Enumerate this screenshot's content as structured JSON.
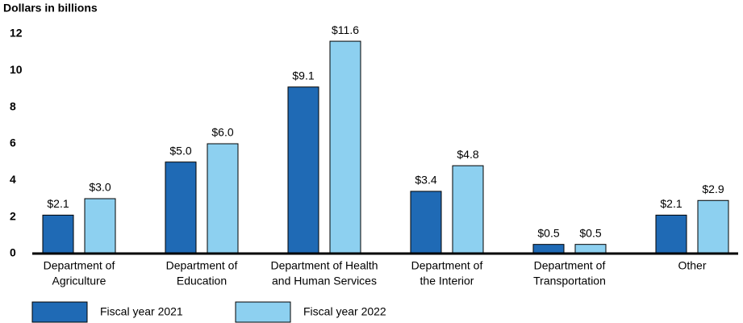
{
  "chart_data": {
    "type": "bar",
    "ylabel": "Dollars in billions",
    "categories": [
      [
        "Department of",
        "Agriculture"
      ],
      [
        "Department of",
        "Education"
      ],
      [
        "Department of Health",
        "and Human Services"
      ],
      [
        "Department of",
        "the Interior"
      ],
      [
        "Department of",
        "Transportation"
      ],
      [
        "Other"
      ]
    ],
    "series": [
      {
        "name": "Fiscal year 2021",
        "color": "#1f6ab5",
        "values": [
          2.1,
          5.0,
          9.1,
          3.4,
          0.5,
          2.1
        ],
        "value_labels": [
          "$2.1",
          "$5.0",
          "$9.1",
          "$3.4",
          "$0.5",
          "$2.1"
        ]
      },
      {
        "name": "Fiscal year 2022",
        "color": "#8dd0f0",
        "values": [
          3.0,
          6.0,
          11.6,
          4.8,
          0.5,
          2.9
        ],
        "value_labels": [
          "$3.0",
          "$6.0",
          "$11.6",
          "$4.8",
          "$0.5",
          "$2.9"
        ]
      }
    ],
    "ylim": [
      0,
      12
    ],
    "yticks": [
      0,
      2,
      4,
      6,
      8,
      10,
      12
    ],
    "grid": false
  }
}
